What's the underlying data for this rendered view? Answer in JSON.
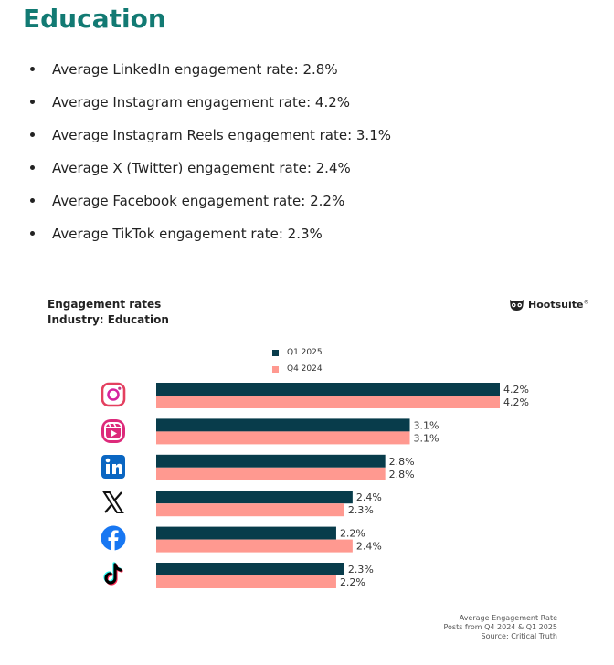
{
  "title": "Education",
  "bullets": [
    "Average LinkedIn engagement rate: 2.8%",
    "Average Instagram engagement rate: 4.2%",
    "Average Instagram Reels engagement rate: 3.1%",
    "Average X (Twitter) engagement rate: 2.4%",
    "Average Facebook engagement rate: 2.2%",
    "Average TikTok engagement rate: 2.3%"
  ],
  "brand": {
    "name": "Hootsuite",
    "mark": "®"
  },
  "colors": {
    "q1": "#083c4b",
    "q4": "#ff9990",
    "title": "#127a73"
  },
  "footer": {
    "line1": "Average Engagement Rate",
    "line2": "Posts from Q4 2024 & Q1 2025",
    "line3": "Source: Critical Truth"
  },
  "chart_data": {
    "type": "bar",
    "orientation": "horizontal",
    "title": "Engagement rates",
    "subtitle": "Industry: Education",
    "categories": [
      "Instagram",
      "Instagram Reels",
      "LinkedIn",
      "X (Twitter)",
      "Facebook",
      "TikTok"
    ],
    "series": [
      {
        "name": "Q1 2025",
        "values": [
          4.2,
          3.1,
          2.8,
          2.4,
          2.2,
          2.3
        ],
        "labels": [
          "4.2%",
          "3.1%",
          "2.8%",
          "2.4%",
          "2.2%",
          "2.3%"
        ]
      },
      {
        "name": "Q4 2024",
        "values": [
          4.2,
          3.1,
          2.8,
          2.3,
          2.4,
          2.2
        ],
        "labels": [
          "4.2%",
          "3.1%",
          "2.8%",
          "2.3%",
          "2.4%",
          "2.2%"
        ]
      }
    ],
    "xlim": [
      0,
      4.2
    ],
    "legend": "top-center",
    "grid": false
  }
}
